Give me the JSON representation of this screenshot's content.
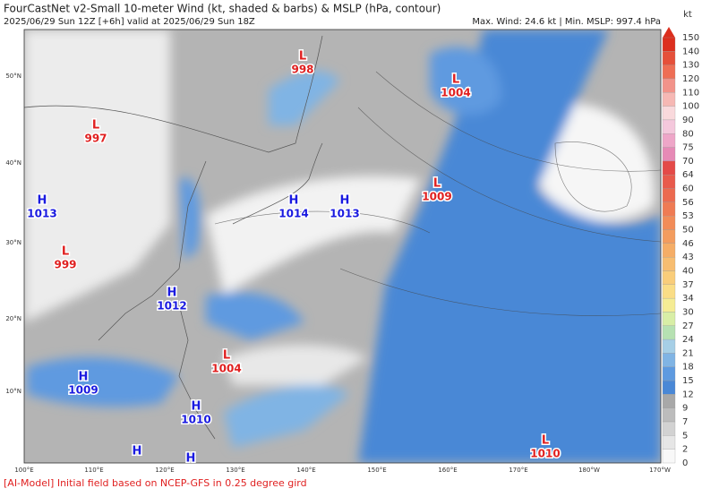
{
  "header": {
    "title": "FourCastNet v2-Small 10-meter Wind (kt, shaded & barbs) & MSLP (hPa, contour)",
    "subtitle": "2025/06/29 Sun 12Z [+6h] valid at 2025/06/29 Sun 18Z",
    "stats": "Max. Wind: 24.6 kt | Min. MSLP: 997.4 hPa"
  },
  "colorbar": {
    "unit": "kt",
    "labels": [
      "150",
      "140",
      "130",
      "120",
      "110",
      "100",
      "90",
      "80",
      "75",
      "70",
      "64",
      "60",
      "56",
      "53",
      "50",
      "46",
      "43",
      "40",
      "37",
      "34",
      "30",
      "27",
      "24",
      "21",
      "18",
      "15",
      "12",
      "9",
      "7",
      "5",
      "2",
      "0"
    ],
    "colors": [
      "#dc2f1e",
      "#e5503a",
      "#ee6e55",
      "#f2938a",
      "#f6b8b4",
      "#f9d9dc",
      "#f4c8dc",
      "#eea6c8",
      "#e68ab6",
      "#e44a48",
      "#e85a4c",
      "#ec6a50",
      "#ef7b54",
      "#f28c58",
      "#f39c5e",
      "#f5ad66",
      "#f7bd70",
      "#f9cd7a",
      "#fadd86",
      "#f5ec94",
      "#d8eea6",
      "#b6e1b2",
      "#a6cfe6",
      "#80b4e4",
      "#5e9ae0",
      "#4a88d6",
      "#a8a8a8",
      "#bcbcbc",
      "#d2d2d2",
      "#e6e6e6",
      "#f8f8f8"
    ]
  },
  "map": {
    "x_labels": [
      "100°E",
      "110°E",
      "120°E",
      "130°E",
      "140°E",
      "150°E",
      "160°E",
      "170°E",
      "180°W",
      "170°W"
    ],
    "y_labels": [
      "50°N",
      "40°N",
      "30°N",
      "20°N",
      "10°N"
    ],
    "centers": [
      {
        "type": "L",
        "value": "998"
      },
      {
        "type": "L",
        "value": "1004"
      },
      {
        "type": "L",
        "value": "997"
      },
      {
        "type": "H",
        "value": "1013"
      },
      {
        "type": "H",
        "value": "1014"
      },
      {
        "type": "H",
        "value": "1013"
      },
      {
        "type": "L",
        "value": "1009"
      },
      {
        "type": "L",
        "value": "999"
      },
      {
        "type": "H",
        "value": "1012"
      },
      {
        "type": "L",
        "value": "1004"
      },
      {
        "type": "H",
        "value": "1009"
      },
      {
        "type": "H",
        "value": "1010"
      },
      {
        "type": "L",
        "value": "1010"
      },
      {
        "type": "H"
      },
      {
        "type": "H"
      }
    ]
  },
  "footer": "[AI-Model] Initial field based on NCEP-GFS in 0.25 degree gird"
}
